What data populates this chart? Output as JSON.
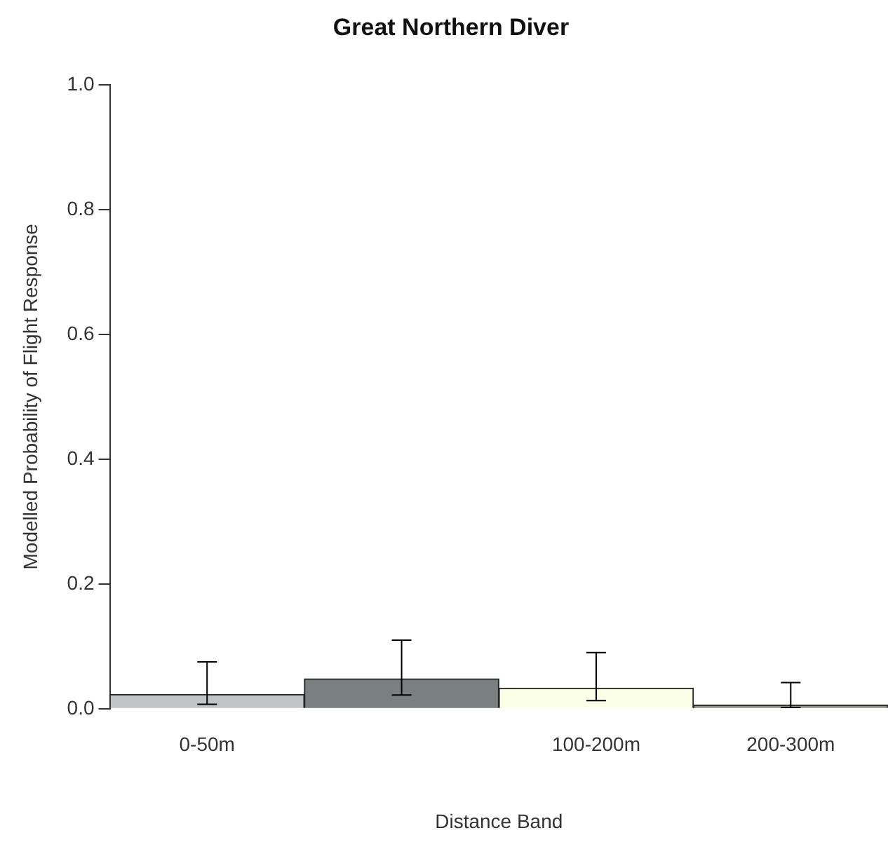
{
  "chart_data": {
    "type": "bar",
    "title": "Great Northern Diver",
    "xlabel": "Distance Band",
    "ylabel": "Modelled Probability of Flight Response",
    "categories": [
      "0-50m",
      null,
      "100-200m",
      "200-300m"
    ],
    "values": [
      0.023,
      0.048,
      0.033,
      0.006
    ],
    "colors": [
      "#c0c4c4",
      "#7a8080",
      "#fcffe8",
      "#8c9084"
    ],
    "errors": [
      [
        0.007,
        0.075
      ],
      [
        0.022,
        0.11
      ],
      [
        0.013,
        0.09
      ],
      [
        0.002,
        0.042
      ]
    ],
    "ylim": [
      0,
      1
    ],
    "yticks": [
      {
        "value": 0,
        "label": "0.0"
      },
      {
        "value": 0.2,
        "label": "0.2"
      },
      {
        "value": 0.4,
        "label": "0.4"
      },
      {
        "value": 0.6,
        "label": "0.6"
      },
      {
        "value": 0.8,
        "label": "0.8"
      },
      {
        "value": 1,
        "label": "1.0"
      }
    ],
    "grid": false,
    "legend": false
  }
}
